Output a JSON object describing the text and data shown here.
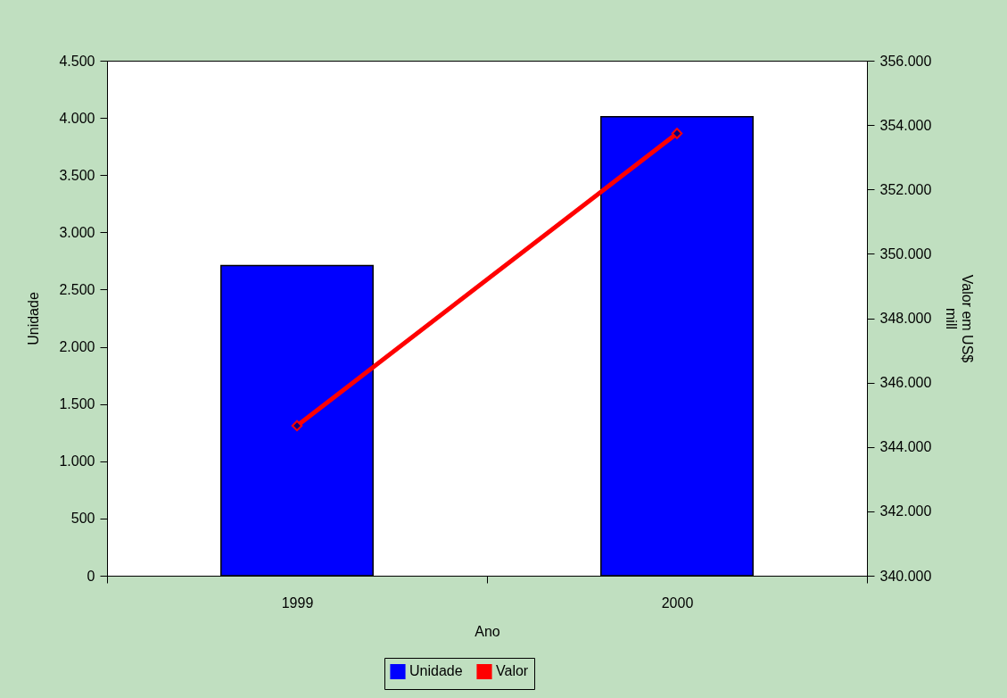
{
  "chart_data": {
    "type": "bar",
    "xlabel": "Ano",
    "ylabel": "Unidade",
    "y2label": "Valor em US$ mill",
    "categories": [
      "1999",
      "2000"
    ],
    "series": [
      {
        "name": "Unidade",
        "color": "#0000ff",
        "values": [
          2710,
          4010
        ]
      },
      {
        "name": "Valor",
        "type": "line",
        "axis": "y2",
        "color": "#ff0000",
        "values": [
          344660,
          353740
        ]
      }
    ],
    "ylim": [
      0,
      4500
    ],
    "yticks": [
      0,
      500,
      {
        "value": 1000,
        "label": "1.000"
      },
      {
        "value": 1500,
        "label": "1.500"
      },
      {
        "value": 2000,
        "label": "2.000"
      },
      {
        "value": 2500,
        "label": "2.500"
      },
      {
        "value": 3000,
        "label": "3.000"
      },
      {
        "value": 3500,
        "label": "3.500"
      },
      {
        "value": 4000,
        "label": "4.000"
      },
      {
        "value": 4500,
        "label": "4.500"
      }
    ],
    "y2lim": [
      340000,
      356000
    ],
    "y2ticks": [
      {
        "value": 340000,
        "label": "340.000"
      },
      {
        "value": 342000,
        "label": "342.000"
      },
      {
        "value": 344000,
        "label": "344.000"
      },
      {
        "value": 346000,
        "label": "346.000"
      },
      {
        "value": 348000,
        "label": "348.000"
      },
      {
        "value": 350000,
        "label": "350.000"
      },
      {
        "value": 352000,
        "label": "352.000"
      },
      {
        "value": 354000,
        "label": "354.000"
      },
      {
        "value": 356000,
        "label": "356.000"
      }
    ],
    "legend": "bottom",
    "marker": "diamond"
  }
}
